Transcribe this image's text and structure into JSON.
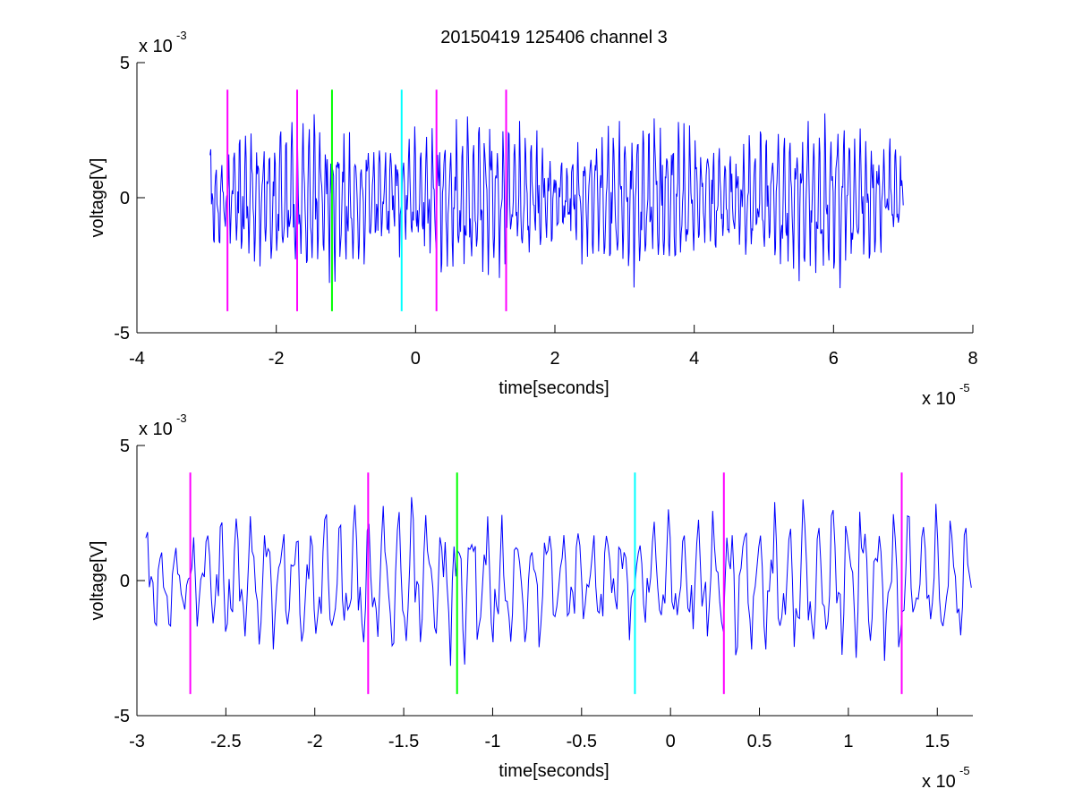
{
  "figure": {
    "title": "20150419 125406 channel 3"
  },
  "chart_data": [
    {
      "type": "line",
      "title": "20150419 125406 channel 3",
      "xlabel": "time[seconds]",
      "ylabel": "voltage[V]",
      "x_exponent_label": "x 10",
      "x_exponent": "-5",
      "y_exponent_label": "x 10",
      "y_exponent": "-3",
      "xlim": [
        -4,
        8
      ],
      "ylim": [
        -5,
        5
      ],
      "xticks": [
        -4,
        -2,
        0,
        2,
        4,
        6,
        8
      ],
      "xtick_labels": [
        "-4",
        "-2",
        "0",
        "2",
        "4",
        "6",
        "8"
      ],
      "yticks": [
        -5,
        0,
        5
      ],
      "ytick_labels": [
        "-5",
        "0",
        "5"
      ],
      "grid": false,
      "signal": {
        "name": "voltage",
        "color": "#0000ff",
        "x_start": -2.95,
        "x_end": 7.0,
        "points": 1000,
        "seed": 7,
        "amplitude_range": [
          -3.7,
          3.6
        ]
      },
      "markers": [
        {
          "x": -2.7,
          "y_from": -4.2,
          "y_to": 4.0,
          "color": "#ff00ff"
        },
        {
          "x": -1.7,
          "y_from": -4.2,
          "y_to": 4.0,
          "color": "#ff00ff"
        },
        {
          "x": -1.2,
          "y_from": -4.2,
          "y_to": 4.0,
          "color": "#00ff00"
        },
        {
          "x": -0.2,
          "y_from": -4.2,
          "y_to": 4.0,
          "color": "#00ffff"
        },
        {
          "x": 0.3,
          "y_from": -4.2,
          "y_to": 4.0,
          "color": "#ff00ff"
        },
        {
          "x": 1.3,
          "y_from": -4.2,
          "y_to": 4.0,
          "color": "#ff00ff"
        }
      ]
    },
    {
      "type": "line",
      "title": "",
      "xlabel": "time[seconds]",
      "ylabel": "voltage[V]",
      "x_exponent_label": "x 10",
      "x_exponent": "-5",
      "y_exponent_label": "x 10",
      "y_exponent": "-3",
      "xlim": [
        -3.0,
        1.7
      ],
      "ylim": [
        -5,
        5
      ],
      "xticks": [
        -3,
        -2.5,
        -2,
        -1.5,
        -1,
        -0.5,
        0,
        0.5,
        1,
        1.5
      ],
      "xtick_labels": [
        "-3",
        "-2.5",
        "-2",
        "-1.5",
        "-1",
        "-0.5",
        "0",
        "0.5",
        "1",
        "1.5"
      ],
      "yticks": [
        -5,
        0,
        5
      ],
      "ytick_labels": [
        "-5",
        "0",
        "5"
      ],
      "grid": false,
      "signal": {
        "name": "voltage",
        "color": "#0000ff",
        "x_start": -2.95,
        "x_end": 1.7,
        "points": 470,
        "seed": 7,
        "amplitude_range": [
          -3.7,
          3.6
        ]
      },
      "markers": [
        {
          "x": -2.7,
          "y_from": -4.2,
          "y_to": 4.0,
          "color": "#ff00ff"
        },
        {
          "x": -1.7,
          "y_from": -4.2,
          "y_to": 4.0,
          "color": "#ff00ff"
        },
        {
          "x": -1.2,
          "y_from": -4.2,
          "y_to": 4.0,
          "color": "#00ff00"
        },
        {
          "x": -0.2,
          "y_from": -4.2,
          "y_to": 4.0,
          "color": "#00ffff"
        },
        {
          "x": 0.3,
          "y_from": -4.2,
          "y_to": 4.0,
          "color": "#ff00ff"
        },
        {
          "x": 1.3,
          "y_from": -4.2,
          "y_to": 4.0,
          "color": "#ff00ff"
        }
      ]
    }
  ]
}
